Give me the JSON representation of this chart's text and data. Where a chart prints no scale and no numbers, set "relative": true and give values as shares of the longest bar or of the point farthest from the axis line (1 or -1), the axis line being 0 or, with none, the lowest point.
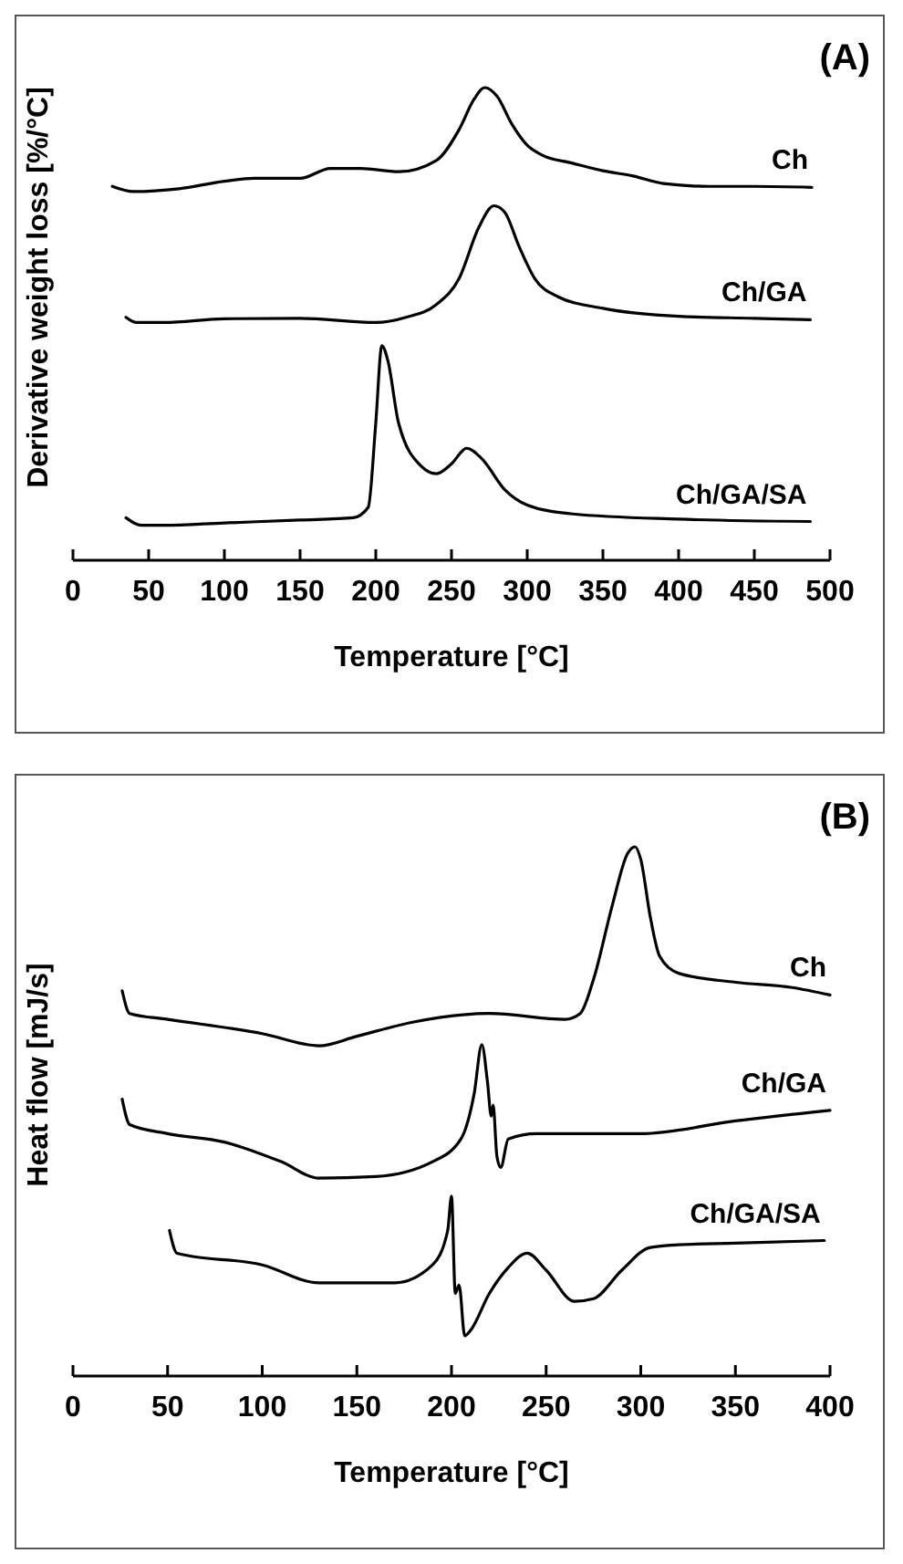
{
  "chart_data": [
    {
      "type": "line",
      "relative": true,
      "xlabel": "Temperature  [°C]",
      "ylabel": "Derivative weight loss  [%/°C]",
      "annotations": [
        "(A)"
      ],
      "xlim": [
        0,
        500
      ],
      "xticks": [
        0,
        50,
        100,
        150,
        200,
        250,
        300,
        350,
        400,
        450,
        500
      ],
      "series": [
        {
          "name": "Ch",
          "color": "#000000",
          "x": [
            26,
            40,
            70,
            100,
            120,
            150,
            170,
            190,
            215,
            240,
            255,
            265,
            272,
            280,
            290,
            300,
            310,
            330,
            350,
            370,
            390,
            420,
            450,
            488
          ],
          "values": [
            0.791,
            0.78,
            0.786,
            0.802,
            0.808,
            0.808,
            0.829,
            0.829,
            0.822,
            0.846,
            0.911,
            0.976,
            1.0,
            0.982,
            0.922,
            0.878,
            0.857,
            0.84,
            0.824,
            0.813,
            0.797,
            0.791,
            0.791,
            0.789
          ]
        },
        {
          "name": "Ch/GA",
          "color": "#000000",
          "x": [
            35,
            42,
            60,
            100,
            150,
            200,
            220,
            240,
            255,
            268,
            278,
            285,
            295,
            305,
            320,
            350,
            400,
            450,
            487
          ],
          "values": [
            0.514,
            0.503,
            0.503,
            0.511,
            0.512,
            0.503,
            0.514,
            0.541,
            0.596,
            0.704,
            0.75,
            0.737,
            0.661,
            0.596,
            0.558,
            0.533,
            0.516,
            0.512,
            0.509
          ]
        },
        {
          "name": "Ch/GA/SA",
          "color": "#000000",
          "x": [
            35,
            45,
            60,
            100,
            150,
            185,
            195,
            200,
            204,
            208,
            215,
            230,
            240,
            250,
            260,
            270,
            285,
            300,
            330,
            400,
            487
          ],
          "values": [
            0.09,
            0.074,
            0.074,
            0.079,
            0.085,
            0.09,
            0.112,
            0.291,
            0.454,
            0.422,
            0.291,
            0.199,
            0.183,
            0.204,
            0.237,
            0.215,
            0.15,
            0.117,
            0.098,
            0.087,
            0.082
          ]
        }
      ]
    },
    {
      "type": "line",
      "relative": true,
      "xlabel": "Temperature  [°C]",
      "ylabel": "Heat flow [mJ/s]",
      "annotations": [
        "(B)"
      ],
      "xlim": [
        0,
        400
      ],
      "xticks": [
        0,
        50,
        100,
        150,
        200,
        250,
        300,
        350,
        400
      ],
      "series": [
        {
          "name": "Ch",
          "color": "#000000",
          "x": [
            26,
            30,
            50,
            100,
            130,
            150,
            180,
            220,
            260,
            268,
            275,
            285,
            293,
            297,
            300,
            305,
            310,
            320,
            350,
            380,
            400
          ],
          "values": [
            0.728,
            0.685,
            0.674,
            0.647,
            0.624,
            0.642,
            0.669,
            0.685,
            0.674,
            0.685,
            0.749,
            0.89,
            0.987,
            1.0,
            0.976,
            0.868,
            0.793,
            0.761,
            0.744,
            0.734,
            0.72
          ]
        },
        {
          "name": "Ch/GA",
          "color": "#000000",
          "x": [
            26,
            30,
            50,
            80,
            110,
            130,
            160,
            190,
            205,
            212,
            216,
            219,
            221,
            222,
            224,
            226,
            230,
            245,
            300,
            350,
            400
          ],
          "values": [
            0.523,
            0.475,
            0.458,
            0.442,
            0.405,
            0.374,
            0.377,
            0.405,
            0.448,
            0.534,
            0.626,
            0.556,
            0.491,
            0.512,
            0.415,
            0.394,
            0.448,
            0.458,
            0.458,
            0.482,
            0.502
          ]
        },
        {
          "name": "Ch/GA/SA",
          "color": "#000000",
          "x": [
            51,
            55,
            100,
            130,
            170,
            190,
            198,
            200,
            202,
            204,
            207,
            210,
            220,
            230,
            240,
            250,
            265,
            275,
            290,
            305,
            320,
            350,
            397
          ],
          "values": [
            0.275,
            0.232,
            0.21,
            0.176,
            0.176,
            0.21,
            0.275,
            0.34,
            0.156,
            0.172,
            0.076,
            0.086,
            0.156,
            0.205,
            0.232,
            0.2,
            0.141,
            0.146,
            0.2,
            0.243,
            0.248,
            0.251,
            0.256
          ]
        }
      ]
    }
  ]
}
